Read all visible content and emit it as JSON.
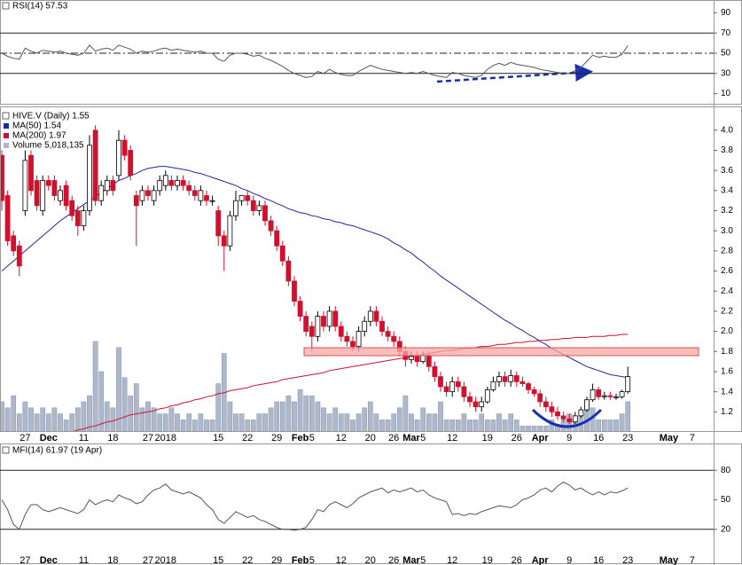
{
  "chart_data": [
    {
      "type": "line",
      "title": "RSI(14) 57.53",
      "color": "#555555",
      "ylim": [
        0,
        100
      ],
      "yticks": [
        10,
        30,
        50,
        70,
        90
      ],
      "levels": [
        {
          "value": 70,
          "style": "solid"
        },
        {
          "value": 50,
          "style": "dashdot"
        },
        {
          "value": 30,
          "style": "solid"
        }
      ],
      "values": [
        50,
        47,
        45,
        44,
        55,
        52,
        50,
        53,
        52,
        51,
        52,
        50,
        49,
        48,
        50,
        58,
        52,
        54,
        55,
        53,
        58,
        56,
        54,
        50,
        52,
        51,
        52,
        54,
        55,
        53,
        54,
        53,
        52,
        51,
        52,
        50,
        50,
        44,
        42,
        48,
        50,
        50,
        49,
        47,
        48,
        45,
        43,
        40,
        37,
        33,
        30,
        28,
        26,
        27,
        32,
        30,
        34,
        31,
        29,
        28,
        28,
        32,
        35,
        38,
        36,
        34,
        33,
        32,
        31,
        30,
        31,
        30,
        32,
        30,
        28,
        27,
        26,
        31,
        30,
        28,
        27,
        26,
        28,
        34,
        38,
        40,
        38,
        41,
        39,
        38,
        37,
        36,
        34,
        33,
        32,
        31,
        30,
        30,
        33,
        36,
        42,
        48,
        46,
        47,
        46,
        46,
        49,
        57.53
      ]
    },
    {
      "type": "candlestick",
      "title": "HIVE.V (Daily) 1.55",
      "legend": "top-left",
      "up_color": "#ffffff",
      "down_color": "#d2102e",
      "ylim": [
        1,
        4.06
      ],
      "yticks": [
        1.2,
        1.4,
        1.6,
        1.8,
        {
          "value": 2,
          "label": "2.0"
        },
        2.2,
        2.4,
        2.6,
        2.8,
        {
          "value": 3,
          "label": "3.0"
        },
        3.2,
        3.4,
        3.6,
        3.8,
        {
          "value": 4,
          "label": "4.0"
        }
      ],
      "categories": [
        null,
        null,
        null,
        null,
        "27",
        null,
        null,
        null,
        "Dec",
        null,
        null,
        null,
        null,
        null,
        "11",
        null,
        null,
        null,
        null,
        "18",
        null,
        null,
        null,
        null,
        null,
        "27",
        null,
        null,
        "2018",
        null,
        null,
        null,
        null,
        null,
        null,
        null,
        null,
        "15",
        null,
        null,
        null,
        null,
        "22",
        null,
        null,
        null,
        null,
        "29",
        null,
        null,
        null,
        "Feb",
        null,
        "5",
        null,
        null,
        null,
        null,
        "12",
        null,
        null,
        null,
        null,
        "20",
        null,
        null,
        null,
        "26",
        null,
        null,
        "Mar",
        null,
        "5",
        null,
        null,
        null,
        null,
        "12",
        null,
        null,
        null,
        null,
        null,
        "19",
        null,
        null,
        null,
        null,
        "26",
        null,
        null,
        null,
        "Apr",
        null,
        null,
        null,
        null,
        "9",
        null,
        null,
        null,
        null,
        "16",
        null,
        null,
        null,
        null,
        "23"
      ],
      "future_categories": [
        null,
        null,
        null,
        null,
        null,
        null,
        "May",
        null,
        null,
        null,
        "7",
        null
      ],
      "open": [
        3.75,
        3.35,
        2.95,
        2.85,
        3.2,
        3.75,
        3.5,
        3.2,
        3.5,
        3.5,
        3.3,
        3.45,
        3.3,
        3.2,
        3.05,
        3.2,
        4.0,
        3.3,
        3.4,
        3.5,
        3.55,
        3.9,
        3.8,
        3.35,
        3.3,
        3.4,
        3.3,
        3.4,
        3.45,
        3.5,
        3.45,
        3.5,
        3.45,
        3.4,
        3.3,
        3.35,
        3.3,
        3.2,
        2.95,
        2.85,
        3.15,
        3.3,
        3.35,
        3.3,
        3.2,
        3.25,
        3.1,
        3.0,
        2.85,
        2.7,
        2.5,
        2.3,
        2.15,
        2.05,
        1.95,
        2.15,
        2.05,
        2.2,
        2.05,
        1.95,
        1.9,
        1.85,
        2.0,
        2.1,
        2.2,
        2.1,
        2.0,
        1.95,
        1.9,
        1.8,
        1.72,
        1.75,
        1.7,
        1.76,
        1.65,
        1.55,
        1.45,
        1.4,
        1.5,
        1.45,
        1.35,
        1.3,
        1.25,
        1.3,
        1.42,
        1.5,
        1.55,
        1.5,
        1.56,
        1.5,
        1.48,
        1.42,
        1.38,
        1.3,
        1.25,
        1.2,
        1.16,
        1.13,
        1.1,
        1.16,
        1.22,
        1.32,
        1.42,
        1.35,
        1.36,
        1.35,
        1.35,
        1.4
      ],
      "high": [
        3.8,
        3.4,
        3.0,
        2.9,
        3.8,
        3.8,
        3.55,
        3.55,
        3.55,
        3.55,
        3.45,
        3.5,
        3.35,
        3.25,
        3.25,
        3.95,
        4.05,
        3.5,
        3.55,
        3.55,
        4.0,
        3.95,
        3.85,
        3.4,
        3.45,
        3.45,
        3.45,
        3.55,
        3.6,
        3.55,
        3.55,
        3.55,
        3.5,
        3.45,
        3.45,
        3.4,
        3.35,
        3.25,
        3.0,
        3.2,
        3.4,
        3.35,
        3.4,
        3.35,
        3.3,
        3.3,
        3.15,
        3.05,
        2.9,
        2.75,
        2.55,
        2.35,
        2.2,
        2.1,
        2.2,
        2.2,
        2.25,
        2.25,
        2.1,
        2.0,
        1.95,
        2.05,
        2.15,
        2.25,
        2.25,
        2.15,
        2.05,
        2.0,
        1.95,
        1.85,
        1.8,
        1.8,
        1.8,
        1.8,
        1.7,
        1.6,
        1.5,
        1.55,
        1.55,
        1.5,
        1.4,
        1.35,
        1.35,
        1.45,
        1.55,
        1.6,
        1.6,
        1.62,
        1.6,
        1.55,
        1.5,
        1.45,
        1.42,
        1.35,
        1.3,
        1.25,
        1.2,
        1.18,
        1.2,
        1.25,
        1.35,
        1.48,
        1.45,
        1.4,
        1.4,
        1.38,
        1.42,
        1.65
      ],
      "low": [
        3.2,
        2.85,
        2.75,
        2.55,
        3.15,
        3.35,
        3.2,
        3.15,
        3.4,
        3.3,
        3.25,
        3.2,
        3.1,
        2.95,
        3.0,
        3.15,
        3.25,
        3.25,
        3.35,
        3.35,
        3.5,
        3.7,
        3.5,
        2.85,
        3.25,
        3.3,
        3.25,
        3.35,
        3.4,
        3.4,
        3.4,
        3.4,
        3.35,
        3.3,
        3.25,
        3.25,
        3.25,
        2.85,
        2.6,
        2.8,
        3.1,
        3.25,
        3.25,
        3.15,
        3.15,
        3.05,
        2.95,
        2.8,
        2.65,
        2.45,
        2.25,
        2.1,
        1.95,
        1.8,
        1.9,
        2.0,
        2.0,
        2.0,
        1.9,
        1.85,
        1.8,
        1.8,
        1.95,
        2.05,
        2.05,
        1.95,
        1.9,
        1.85,
        1.75,
        1.65,
        1.68,
        1.65,
        1.68,
        1.6,
        1.5,
        1.4,
        1.35,
        1.35,
        1.4,
        1.3,
        1.25,
        1.2,
        1.2,
        1.28,
        1.4,
        1.45,
        1.45,
        1.45,
        1.45,
        1.45,
        1.38,
        1.35,
        1.25,
        1.2,
        1.15,
        1.12,
        1.1,
        1.08,
        1.08,
        1.14,
        1.2,
        1.3,
        1.32,
        1.32,
        1.32,
        1.32,
        1.33,
        1.38
      ],
      "close": [
        3.3,
        2.9,
        2.8,
        2.65,
        3.7,
        3.4,
        3.25,
        3.5,
        3.45,
        3.35,
        3.4,
        3.25,
        3.15,
        3.05,
        3.2,
        3.85,
        3.3,
        3.45,
        3.5,
        3.4,
        3.9,
        3.75,
        3.55,
        3.25,
        3.4,
        3.35,
        3.4,
        3.5,
        3.55,
        3.45,
        3.5,
        3.45,
        3.4,
        3.35,
        3.4,
        3.3,
        3.3,
        2.95,
        2.85,
        3.15,
        3.3,
        3.35,
        3.3,
        3.2,
        3.25,
        3.1,
        3.0,
        2.85,
        2.7,
        2.5,
        2.3,
        2.15,
        2.0,
        1.95,
        2.15,
        2.05,
        2.2,
        2.05,
        1.95,
        1.9,
        1.85,
        2.0,
        2.1,
        2.2,
        2.1,
        2.0,
        1.95,
        1.9,
        1.8,
        1.72,
        1.75,
        1.7,
        1.76,
        1.65,
        1.55,
        1.45,
        1.4,
        1.5,
        1.45,
        1.35,
        1.3,
        1.25,
        1.3,
        1.42,
        1.5,
        1.55,
        1.5,
        1.56,
        1.5,
        1.48,
        1.42,
        1.38,
        1.3,
        1.25,
        1.2,
        1.16,
        1.13,
        1.1,
        1.16,
        1.22,
        1.32,
        1.42,
        1.35,
        1.36,
        1.35,
        1.35,
        1.4,
        1.55
      ],
      "series": [
        {
          "name": "MA(50) 1.54",
          "color": "#1a2a9c",
          "values": [
            2.6,
            2.65,
            2.7,
            2.75,
            2.8,
            2.85,
            2.9,
            2.95,
            3.0,
            3.05,
            3.1,
            3.14,
            3.18,
            3.22,
            3.26,
            3.3,
            3.34,
            3.38,
            3.42,
            3.46,
            3.5,
            3.52,
            3.55,
            3.57,
            3.6,
            3.62,
            3.63,
            3.64,
            3.64,
            3.63,
            3.62,
            3.61,
            3.6,
            3.58,
            3.57,
            3.55,
            3.53,
            3.51,
            3.49,
            3.47,
            3.45,
            3.42,
            3.4,
            3.37,
            3.35,
            3.32,
            3.3,
            3.27,
            3.25,
            3.22,
            3.2,
            3.18,
            3.17,
            3.15,
            3.14,
            3.12,
            3.11,
            3.09,
            3.08,
            3.06,
            3.05,
            3.03,
            3.01,
            2.99,
            2.97,
            2.95,
            2.92,
            2.88,
            2.85,
            2.81,
            2.78,
            2.73,
            2.69,
            2.64,
            2.6,
            2.55,
            2.51,
            2.47,
            2.43,
            2.39,
            2.35,
            2.31,
            2.27,
            2.23,
            2.19,
            2.15,
            2.11,
            2.08,
            2.04,
            2.01,
            1.97,
            1.94,
            1.9,
            1.87,
            1.83,
            1.8,
            1.77,
            1.74,
            1.71,
            1.68,
            1.65,
            1.63,
            1.61,
            1.59,
            1.57,
            1.56,
            1.55,
            1.54
          ]
        },
        {
          "name": "MA(200) 1.97",
          "color": "#c8142e",
          "values": [
            null,
            null,
            null,
            null,
            null,
            null,
            null,
            null,
            null,
            null,
            null,
            null,
            1.0,
            1.02,
            1.03,
            1.05,
            1.06,
            1.08,
            1.1,
            1.11,
            1.13,
            1.15,
            1.17,
            1.18,
            1.19,
            1.2,
            1.21,
            1.23,
            1.24,
            1.26,
            1.27,
            1.29,
            1.3,
            1.32,
            1.33,
            1.35,
            1.36,
            1.38,
            1.39,
            1.41,
            1.42,
            1.43,
            1.44,
            1.46,
            1.47,
            1.48,
            1.49,
            1.5,
            1.52,
            1.53,
            1.54,
            1.55,
            1.56,
            1.57,
            1.58,
            1.59,
            1.61,
            1.62,
            1.63,
            1.64,
            1.65,
            1.66,
            1.67,
            1.68,
            1.69,
            1.7,
            1.71,
            1.72,
            1.73,
            1.74,
            1.75,
            1.76,
            1.77,
            1.78,
            1.79,
            1.8,
            1.81,
            1.81,
            1.82,
            1.83,
            1.83,
            1.84,
            1.85,
            1.85,
            1.86,
            1.87,
            1.87,
            1.88,
            1.89,
            1.89,
            1.9,
            1.9,
            1.91,
            1.91,
            1.92,
            1.92,
            1.93,
            1.93,
            1.94,
            1.94,
            1.94,
            1.95,
            1.95,
            1.95,
            1.96,
            1.96,
            1.97,
            1.97
          ]
        }
      ],
      "volume": {
        "name": "Volume 5,018,135",
        "color": "#aeb8ca",
        "vlim": [
          0,
          51000000
        ],
        "values": [
          5000000,
          4000000,
          6000000,
          3000000,
          5000000,
          4000000,
          3000000,
          4000000,
          3000000,
          4000000,
          3000000,
          2000000,
          3000000,
          4000000,
          5000000,
          6000000,
          15000000,
          10000000,
          5000000,
          4000000,
          14000000,
          9000000,
          6000000,
          8000000,
          4000000,
          5000000,
          4000000,
          3000000,
          3000000,
          4000000,
          3000000,
          2000000,
          3000000,
          2000000,
          3000000,
          2000000,
          2000000,
          8000000,
          13000000,
          5000000,
          3000000,
          3000000,
          2000000,
          2000000,
          3000000,
          3000000,
          4000000,
          5000000,
          5000000,
          6000000,
          5000000,
          7000000,
          6000000,
          6000000,
          5000000,
          4000000,
          3000000,
          4000000,
          3000000,
          3000000,
          2000000,
          3000000,
          4000000,
          5000000,
          3000000,
          2000000,
          2000000,
          3000000,
          4000000,
          6000000,
          3000000,
          2000000,
          4000000,
          3000000,
          3000000,
          5000000,
          2000000,
          2000000,
          2000000,
          3000000,
          2000000,
          2000000,
          3000000,
          2000000,
          2000000,
          3000000,
          2000000,
          3000000,
          2000000,
          1000000,
          1000000,
          1000000,
          1000000,
          1000000,
          2000000,
          1000000,
          2000000,
          3000000,
          2000000,
          3000000,
          5000000,
          4000000,
          2000000,
          2000000,
          2000000,
          2000000,
          3000000,
          5018135
        ]
      }
    },
    {
      "type": "line",
      "title": "MFI(14) 61.97 (19 Apr)",
      "color": "#555555",
      "ylim": [
        0,
        100
      ],
      "yticks": [
        20,
        50,
        80
      ],
      "levels": [
        {
          "value": 80,
          "style": "solid"
        },
        {
          "value": 20,
          "style": "solid"
        }
      ],
      "values": [
        50,
        40,
        25,
        20,
        35,
        45,
        45,
        40,
        38,
        40,
        42,
        40,
        38,
        36,
        40,
        50,
        45,
        48,
        50,
        48,
        55,
        52,
        50,
        46,
        48,
        55,
        60,
        62,
        66,
        60,
        58,
        56,
        58,
        55,
        52,
        45,
        40,
        30,
        26,
        32,
        38,
        35,
        32,
        34,
        30,
        28,
        25,
        22,
        20,
        20,
        19,
        20,
        22,
        30,
        40,
        38,
        45,
        48,
        45,
        42,
        46,
        52,
        55,
        58,
        60,
        62,
        57,
        60,
        58,
        60,
        62,
        58,
        60,
        55,
        52,
        50,
        48,
        35,
        36,
        34,
        36,
        35,
        38,
        40,
        42,
        44,
        43,
        42,
        45,
        50,
        52,
        55,
        60,
        62,
        58,
        64,
        68,
        65,
        60,
        62,
        58,
        55,
        58,
        55,
        58,
        57,
        59,
        61.97
      ]
    }
  ]
}
